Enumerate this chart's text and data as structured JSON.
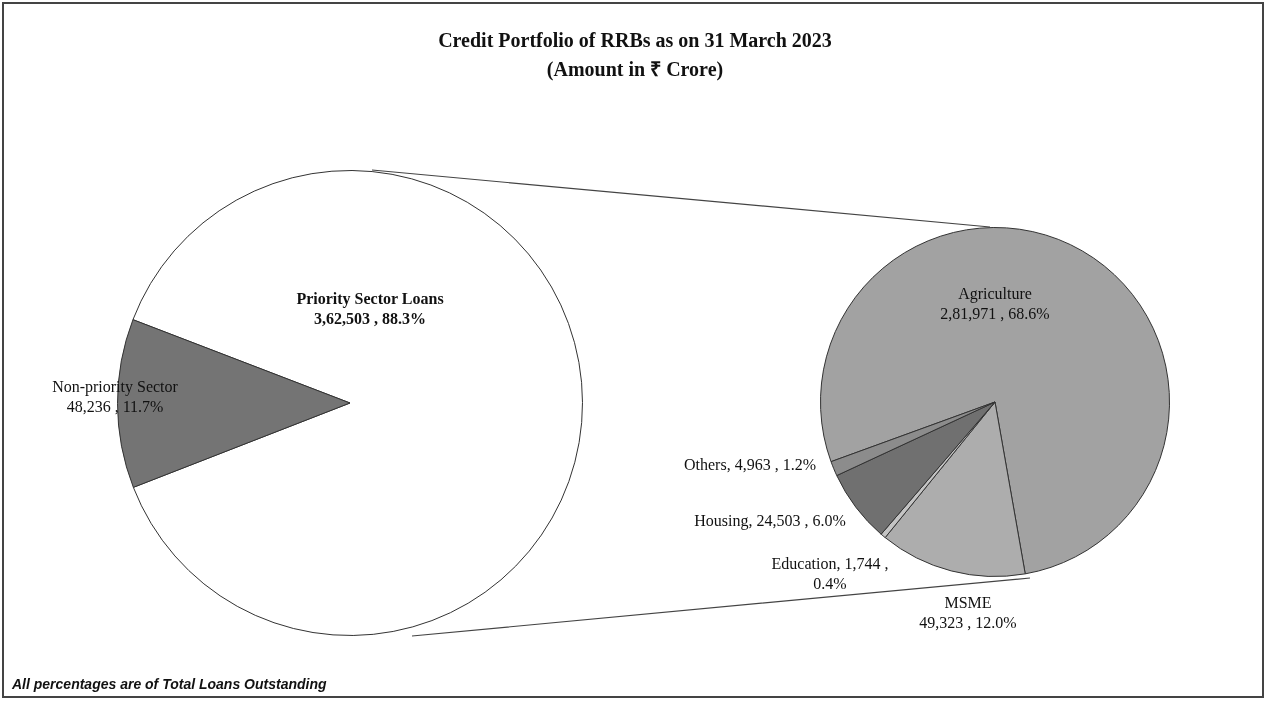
{
  "chart_data": [
    {
      "type": "pie",
      "title": "Credit Portfolio of RRBs as on 31 March 2023",
      "subtitle": "(Amount in ₹ Crore)",
      "categories": [
        "Priority Sector Loans",
        "Non-priority Sector"
      ],
      "values": [
        362503,
        48236
      ],
      "colors": [
        "#ffffff",
        "#747474"
      ],
      "value_labels": [
        "3,62,503 , 88.3%",
        "48,236 , 11.7%"
      ],
      "annotations": [
        "All percentages are of Total Loans Outstanding"
      ]
    },
    {
      "type": "pie",
      "categories": [
        "Agriculture",
        "MSME",
        "Education",
        "Housing",
        "Others"
      ],
      "values": [
        281971,
        49323,
        1744,
        24503,
        4963
      ],
      "colors": [
        "#a2a2a2",
        "#adadad",
        "#c4c4c4",
        "#707070",
        "#8c8c8c"
      ],
      "value_labels": [
        "2,81,971 , 68.6%",
        "49,323 , 12.0%",
        "1,744 , 0.4%",
        "24,503 , 6.0%",
        "4,963 , 1.2%"
      ]
    }
  ]
}
